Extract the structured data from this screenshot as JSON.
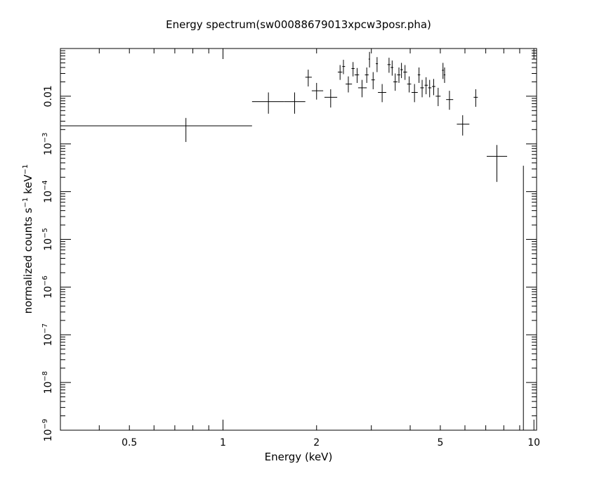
{
  "chart_data": {
    "type": "scatter",
    "title": "Energy spectrum(sw00088679013xpcw3posr.pha)",
    "xlabel": "Energy (keV)",
    "ylabel": "normalized counts s^-1 keV^-1",
    "xscale": "log",
    "yscale": "log",
    "xlim": [
      0.3,
      10.2
    ],
    "ylim": [
      1e-09,
      0.1
    ],
    "grid": false,
    "legend": "none",
    "x_ticks": [
      {
        "value": 0.5,
        "label": "0.5"
      },
      {
        "value": 1,
        "label": "1"
      },
      {
        "value": 2,
        "label": "2"
      },
      {
        "value": 5,
        "label": "5"
      },
      {
        "value": 10,
        "label": "10"
      }
    ],
    "y_ticks": [
      {
        "value": 1e-09,
        "base": "10",
        "exp": "−9"
      },
      {
        "value": 1e-08,
        "base": "10",
        "exp": "−8"
      },
      {
        "value": 1e-07,
        "base": "10",
        "exp": "−7"
      },
      {
        "value": 1e-06,
        "base": "10",
        "exp": "−6"
      },
      {
        "value": 1e-05,
        "base": "10",
        "exp": "−5"
      },
      {
        "value": 0.0001,
        "base": "10",
        "exp": "−4"
      },
      {
        "value": 0.001,
        "base": "10",
        "exp": "−3"
      },
      {
        "value": 0.01,
        "base": "0.01",
        "exp": ""
      }
    ],
    "series": [
      {
        "points": [
          {
            "x": 0.76,
            "xlo": 0.3,
            "xhi": 1.24,
            "y": 0.0024,
            "ylo": 0.0011,
            "yhi": 0.0035
          },
          {
            "x": 1.4,
            "xlo": 1.24,
            "xhi": 1.57,
            "y": 0.0077,
            "ylo": 0.0043,
            "yhi": 0.012
          },
          {
            "x": 1.7,
            "xlo": 1.57,
            "xhi": 1.84,
            "y": 0.0077,
            "ylo": 0.0043,
            "yhi": 0.012
          },
          {
            "x": 1.88,
            "xlo": 1.84,
            "xhi": 1.93,
            "y": 0.025,
            "ylo": 0.016,
            "yhi": 0.036
          },
          {
            "x": 2.0,
            "xlo": 1.93,
            "xhi": 2.1,
            "y": 0.013,
            "ylo": 0.0085,
            "yhi": 0.019
          },
          {
            "x": 2.22,
            "xlo": 2.12,
            "xhi": 2.33,
            "y": 0.0095,
            "ylo": 0.0058,
            "yhi": 0.014
          },
          {
            "x": 2.38,
            "xlo": 2.34,
            "xhi": 2.42,
            "y": 0.032,
            "ylo": 0.022,
            "yhi": 0.045
          },
          {
            "x": 2.44,
            "xlo": 2.42,
            "xhi": 2.47,
            "y": 0.042,
            "ylo": 0.029,
            "yhi": 0.058
          },
          {
            "x": 2.53,
            "xlo": 2.48,
            "xhi": 2.6,
            "y": 0.018,
            "ylo": 0.012,
            "yhi": 0.026
          },
          {
            "x": 2.62,
            "xlo": 2.59,
            "xhi": 2.65,
            "y": 0.038,
            "ylo": 0.026,
            "yhi": 0.052
          },
          {
            "x": 2.7,
            "xlo": 2.65,
            "xhi": 2.74,
            "y": 0.028,
            "ylo": 0.019,
            "yhi": 0.039
          },
          {
            "x": 2.8,
            "xlo": 2.72,
            "xhi": 2.9,
            "y": 0.015,
            "ylo": 0.0095,
            "yhi": 0.022
          },
          {
            "x": 2.9,
            "xlo": 2.86,
            "xhi": 2.94,
            "y": 0.028,
            "ylo": 0.019,
            "yhi": 0.04
          },
          {
            "x": 2.96,
            "xlo": 2.94,
            "xhi": 2.97,
            "y": 0.06,
            "ylo": 0.04,
            "yhi": 0.085
          },
          {
            "x": 3.04,
            "xlo": 3.0,
            "xhi": 3.08,
            "y": 0.022,
            "ylo": 0.014,
            "yhi": 0.032
          },
          {
            "x": 3.13,
            "xlo": 3.1,
            "xhi": 3.15,
            "y": 0.048,
            "ylo": 0.032,
            "yhi": 0.066
          },
          {
            "x": 3.25,
            "xlo": 3.15,
            "xhi": 3.35,
            "y": 0.012,
            "ylo": 0.0075,
            "yhi": 0.018
          },
          {
            "x": 3.42,
            "xlo": 3.38,
            "xhi": 3.46,
            "y": 0.046,
            "ylo": 0.031,
            "yhi": 0.064
          },
          {
            "x": 3.5,
            "xlo": 3.46,
            "xhi": 3.53,
            "y": 0.04,
            "ylo": 0.027,
            "yhi": 0.056
          },
          {
            "x": 3.58,
            "xlo": 3.53,
            "xhi": 3.64,
            "y": 0.02,
            "ylo": 0.013,
            "yhi": 0.03
          },
          {
            "x": 3.68,
            "xlo": 3.63,
            "xhi": 3.72,
            "y": 0.028,
            "ylo": 0.019,
            "yhi": 0.04
          },
          {
            "x": 3.75,
            "xlo": 3.72,
            "xhi": 3.79,
            "y": 0.036,
            "ylo": 0.024,
            "yhi": 0.05
          },
          {
            "x": 3.85,
            "xlo": 3.8,
            "xhi": 3.91,
            "y": 0.032,
            "ylo": 0.022,
            "yhi": 0.045
          },
          {
            "x": 3.97,
            "xlo": 3.91,
            "xhi": 4.03,
            "y": 0.018,
            "ylo": 0.012,
            "yhi": 0.026
          },
          {
            "x": 4.13,
            "xlo": 4.04,
            "xhi": 4.23,
            "y": 0.012,
            "ylo": 0.0075,
            "yhi": 0.018
          },
          {
            "x": 4.27,
            "xlo": 4.23,
            "xhi": 4.31,
            "y": 0.028,
            "ylo": 0.019,
            "yhi": 0.04
          },
          {
            "x": 4.37,
            "xlo": 4.31,
            "xhi": 4.43,
            "y": 0.015,
            "ylo": 0.0095,
            "yhi": 0.022
          },
          {
            "x": 4.5,
            "xlo": 4.45,
            "xhi": 4.56,
            "y": 0.017,
            "ylo": 0.011,
            "yhi": 0.025
          },
          {
            "x": 4.62,
            "xlo": 4.57,
            "xhi": 4.68,
            "y": 0.015,
            "ylo": 0.0095,
            "yhi": 0.022
          },
          {
            "x": 4.76,
            "xlo": 4.7,
            "xhi": 4.82,
            "y": 0.016,
            "ylo": 0.0105,
            "yhi": 0.023
          },
          {
            "x": 4.92,
            "xlo": 4.83,
            "xhi": 5.01,
            "y": 0.01,
            "ylo": 0.0062,
            "yhi": 0.015
          },
          {
            "x": 5.1,
            "xlo": 5.06,
            "xhi": 5.13,
            "y": 0.035,
            "ylo": 0.023,
            "yhi": 0.05
          },
          {
            "x": 5.16,
            "xlo": 5.13,
            "xhi": 5.19,
            "y": 0.028,
            "ylo": 0.019,
            "yhi": 0.04
          },
          {
            "x": 5.35,
            "xlo": 5.22,
            "xhi": 5.5,
            "y": 0.0085,
            "ylo": 0.0052,
            "yhi": 0.013
          },
          {
            "x": 5.9,
            "xlo": 5.65,
            "xhi": 6.2,
            "y": 0.0026,
            "ylo": 0.0015,
            "yhi": 0.004
          },
          {
            "x": 6.5,
            "xlo": 6.4,
            "xhi": 6.6,
            "y": 0.0095,
            "ylo": 0.006,
            "yhi": 0.014
          },
          {
            "x": 7.6,
            "xlo": 7.05,
            "xhi": 8.2,
            "y": 0.00055,
            "ylo": 0.00016,
            "yhi": 0.00095
          },
          {
            "x": 9.25,
            "xlo": 9.25,
            "xhi": 9.25,
            "y": 0.00035,
            "ylo": 1e-09,
            "yhi": 0.00035
          }
        ]
      }
    ]
  }
}
